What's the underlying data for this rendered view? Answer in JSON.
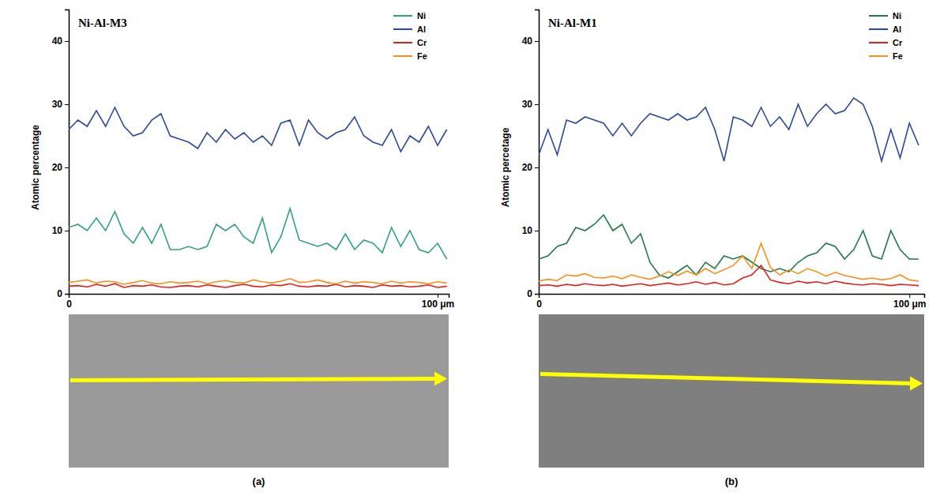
{
  "chart_data": [
    {
      "type": "line",
      "title": "Ni-Al-M3",
      "panel": "(a)",
      "ylabel": "Atomic percentage",
      "x": [
        0,
        2.5,
        5,
        7.5,
        10,
        12.5,
        15,
        17.5,
        20,
        22.5,
        25,
        27.5,
        30,
        32.5,
        35,
        37.5,
        40,
        42.5,
        45,
        47.5,
        50,
        52.5,
        55,
        57.5,
        60,
        62.5,
        65,
        67.5,
        70,
        72.5,
        75,
        77.5,
        80,
        82.5,
        85,
        87.5,
        90,
        92.5,
        95,
        97.5,
        100,
        102.5
      ],
      "xlim": [
        0,
        103
      ],
      "xticks": [
        0,
        {
          "value": 100,
          "label": "100 μm"
        }
      ],
      "ylim": [
        0,
        45
      ],
      "yticks": [
        0,
        10,
        20,
        30,
        40
      ],
      "legend": "upper right",
      "series": [
        {
          "name": "Ni",
          "color": "#2fa37a",
          "values": [
            10.5,
            11,
            10,
            12,
            10,
            13,
            9.5,
            8,
            10.5,
            8,
            11,
            7,
            7,
            7.5,
            7,
            7.5,
            11,
            10,
            11,
            9,
            8,
            12,
            6.5,
            9,
            13.5,
            8.5,
            8,
            7.5,
            8,
            7,
            9.5,
            7,
            8.5,
            8,
            6.5,
            10.5,
            7.5,
            10,
            7,
            6.5,
            8,
            5.5
          ]
        },
        {
          "name": "Al",
          "color": "#2b4a9a",
          "values": [
            26,
            27.5,
            26.5,
            29,
            26.5,
            29.5,
            26.5,
            25,
            25.5,
            27.5,
            28.5,
            25,
            24.5,
            24,
            23,
            25.5,
            24,
            26,
            24.5,
            25.5,
            24,
            25,
            23.5,
            27,
            27.5,
            23.5,
            27.5,
            25.5,
            24.5,
            25.5,
            26,
            28,
            25,
            24,
            23.5,
            26,
            22.5,
            25,
            24,
            26.5,
            23.5,
            26
          ]
        },
        {
          "name": "Cr",
          "color": "#e0201b",
          "values": [
            1.2,
            1.3,
            1.1,
            1.5,
            1.2,
            1.6,
            1.0,
            1.3,
            1.2,
            1.4,
            1.1,
            1.0,
            1.2,
            1.3,
            1.1,
            1.4,
            1.2,
            1.0,
            1.3,
            1.5,
            1.2,
            1.1,
            1.4,
            1.3,
            1.6,
            1.2,
            1.1,
            1.3,
            1.2,
            1.5,
            1.1,
            1.3,
            1.2,
            1.0,
            1.4,
            1.2,
            1.3,
            1.1,
            1.2,
            1.4,
            1.0,
            1.2
          ]
        },
        {
          "name": "Fe",
          "color": "#f5901e",
          "values": [
            1.8,
            2.0,
            2.2,
            1.7,
            2.0,
            1.9,
            1.5,
            1.8,
            2.1,
            1.7,
            1.6,
            1.9,
            1.7,
            1.8,
            2.0,
            1.6,
            1.9,
            2.1,
            1.8,
            1.7,
            2.2,
            1.9,
            1.7,
            2.0,
            2.4,
            1.8,
            1.9,
            2.2,
            1.8,
            1.6,
            2.0,
            1.7,
            1.9,
            1.8,
            1.6,
            2.0,
            1.7,
            1.9,
            1.8,
            1.6,
            1.9,
            1.7
          ]
        }
      ]
    },
    {
      "type": "line",
      "title": "Ni-Al-M1",
      "panel": "(b)",
      "ylabel": "Atomic percetage",
      "x": [
        0,
        2.5,
        5,
        7.5,
        10,
        12.5,
        15,
        17.5,
        20,
        22.5,
        25,
        27.5,
        30,
        32.5,
        35,
        37.5,
        40,
        42.5,
        45,
        47.5,
        50,
        52.5,
        55,
        57.5,
        60,
        62.5,
        65,
        67.5,
        70,
        72.5,
        75,
        77.5,
        80,
        82.5,
        85,
        87.5,
        90,
        92.5,
        95,
        97.5,
        100,
        102.5
      ],
      "xlim": [
        0,
        104
      ],
      "xticks": [
        0,
        {
          "value": 100,
          "label": "100 μm"
        }
      ],
      "ylim": [
        0,
        45
      ],
      "yticks": [
        0,
        10,
        20,
        30,
        40
      ],
      "legend": "upper right",
      "series": [
        {
          "name": "Ni",
          "color": "#1e7a4a",
          "values": [
            5.5,
            6,
            7.5,
            8,
            10.5,
            10,
            11,
            12.5,
            10,
            11,
            8,
            9.5,
            5,
            3,
            2.5,
            3.5,
            4.5,
            3,
            5,
            4,
            6,
            5.5,
            6,
            5,
            4,
            3.5,
            4,
            3.5,
            5,
            6,
            6.5,
            8,
            7.5,
            5.5,
            7,
            10,
            6,
            5.5,
            10,
            7,
            5.5,
            5.5
          ]
        },
        {
          "name": "Al",
          "color": "#2b4a9a",
          "values": [
            22,
            26,
            22,
            27.5,
            27,
            28,
            27.5,
            27,
            25,
            27,
            25,
            27,
            28.5,
            28,
            27.5,
            28.5,
            27.5,
            28,
            29.5,
            26,
            21,
            28,
            27.5,
            26.5,
            29.5,
            26.5,
            28,
            26,
            30,
            26.5,
            28.5,
            30,
            28.5,
            29,
            31,
            30,
            26.5,
            21,
            26,
            21.5,
            27,
            23.5
          ]
        },
        {
          "name": "Cr",
          "color": "#e0201b",
          "values": [
            1.3,
            1.4,
            1.2,
            1.5,
            1.3,
            1.6,
            1.4,
            1.3,
            1.5,
            1.2,
            1.4,
            1.6,
            1.3,
            1.5,
            1.7,
            1.4,
            1.6,
            1.9,
            1.5,
            1.8,
            1.4,
            1.6,
            2.5,
            3,
            4.5,
            2.2,
            1.8,
            1.6,
            2,
            1.7,
            1.9,
            1.6,
            2,
            1.7,
            1.5,
            1.4,
            1.6,
            1.5,
            1.3,
            1.5,
            1.4,
            1.3
          ]
        },
        {
          "name": "Fe",
          "color": "#f5901e",
          "values": [
            2.0,
            2.3,
            2.1,
            3.0,
            2.8,
            3.2,
            2.6,
            2.5,
            2.8,
            2.4,
            3.0,
            2.6,
            2.3,
            2.8,
            3.5,
            2.9,
            3.6,
            3.0,
            4.0,
            3.2,
            3.8,
            4.5,
            6,
            4,
            8,
            4.2,
            3.0,
            3.8,
            3.2,
            4.0,
            3.5,
            2.8,
            3.4,
            2.9,
            2.6,
            2.3,
            2.5,
            2.2,
            2.4,
            3.0,
            2.2,
            2.0
          ]
        }
      ]
    }
  ]
}
